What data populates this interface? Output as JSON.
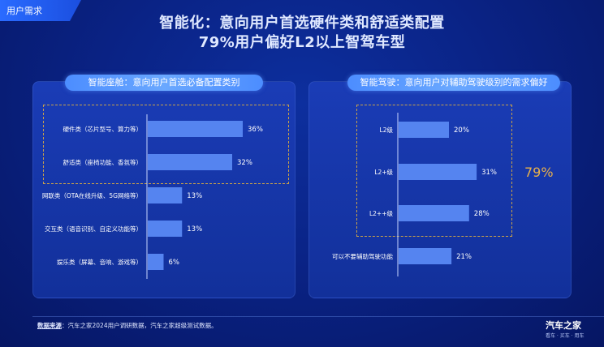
{
  "header": {
    "tag": "用户需求",
    "title_line1": "智能化：意向用户首选硬件类和舒适类配置",
    "title_line2": "79%用户偏好L2以上智驾车型"
  },
  "panels": {
    "left_title": "智能座舱：意向用户首选必备配置类别",
    "right_title": "智能驾驶：意向用户对辅助驾驶级别的需求偏好",
    "right_highlight": "79%"
  },
  "footer": {
    "source_label": "数据来源",
    "source_text": "：汽车之家2024用户调研数据，汽车之家超级测试数据。",
    "brand": "汽车之家",
    "brand_sub": "看车 · 买车 · 用车"
  },
  "chart_data": [
    {
      "type": "bar",
      "orientation": "horizontal",
      "title": "智能座舱：意向用户首选必备配置类别",
      "categories": [
        "硬件类（芯片型号、算力等）",
        "舒适类（座椅功能、香氛等）",
        "网联类（OTA在线升级、5G网络等）",
        "交互类（语音识别、自定义功能等）",
        "娱乐类（屏幕、音响、游戏等）"
      ],
      "values": [
        36,
        32,
        13,
        13,
        6
      ],
      "value_labels": [
        "36%",
        "32%",
        "13%",
        "13%",
        "6%"
      ],
      "unit": "%",
      "highlighted_categories": [
        "硬件类（芯片型号、算力等）",
        "舒适类（座椅功能、香氛等）"
      ],
      "bar_color": "#5584f0",
      "highlight_border_color": "#c8a14a"
    },
    {
      "type": "bar",
      "orientation": "horizontal",
      "title": "智能驾驶：意向用户对辅助驾驶级别的需求偏好",
      "categories": [
        "L2级",
        "L2+级",
        "L2++级",
        "可以不要辅助驾驶功能"
      ],
      "values": [
        20,
        31,
        28,
        21
      ],
      "value_labels": [
        "20%",
        "31%",
        "28%",
        "21%"
      ],
      "unit": "%",
      "highlighted_categories": [
        "L2级",
        "L2+级",
        "L2++级"
      ],
      "highlight_total": "79%",
      "bar_color": "#5584f0",
      "highlight_border_color": "#c8a14a"
    }
  ]
}
